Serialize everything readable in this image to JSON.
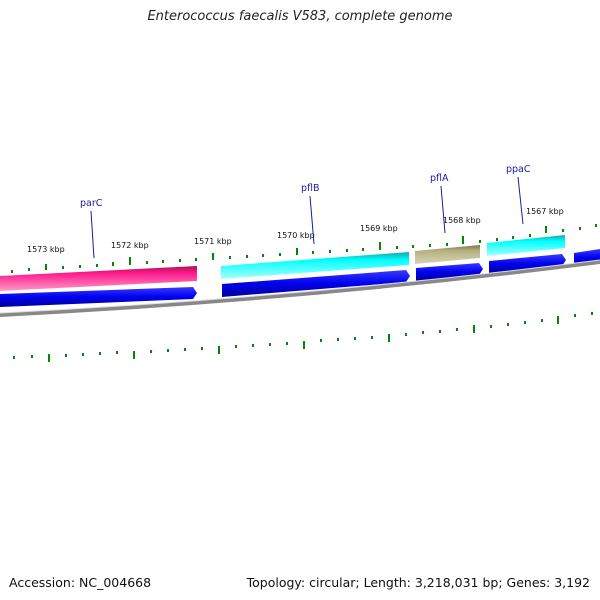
{
  "title": "Enterococcus faecalis V583, complete genome",
  "footer": {
    "accession": "Accession: NC_004668",
    "summary": "Topology: circular; Length: 3,218,031 bp; Genes: 3,192"
  },
  "ticks": [
    {
      "label": "1573 kbp"
    },
    {
      "label": "1572 kbp"
    },
    {
      "label": "1571 kbp"
    },
    {
      "label": "1570 kbp"
    },
    {
      "label": "1569 kbp"
    },
    {
      "label": "1568 kbp"
    },
    {
      "label": "1567 kbp"
    }
  ],
  "genes": [
    {
      "name": "parC",
      "color": "#ff1493"
    },
    {
      "name": "pflB",
      "color": "#00ffff"
    },
    {
      "name": "pflA",
      "color": "#b5b083"
    },
    {
      "name": "ppaC",
      "color": "#00ffff"
    }
  ],
  "colors": {
    "feature_forward_strand": "#0000ee",
    "backbone": "#888888",
    "tick_marks": "#008800",
    "label_line": "#1a1aa8"
  }
}
